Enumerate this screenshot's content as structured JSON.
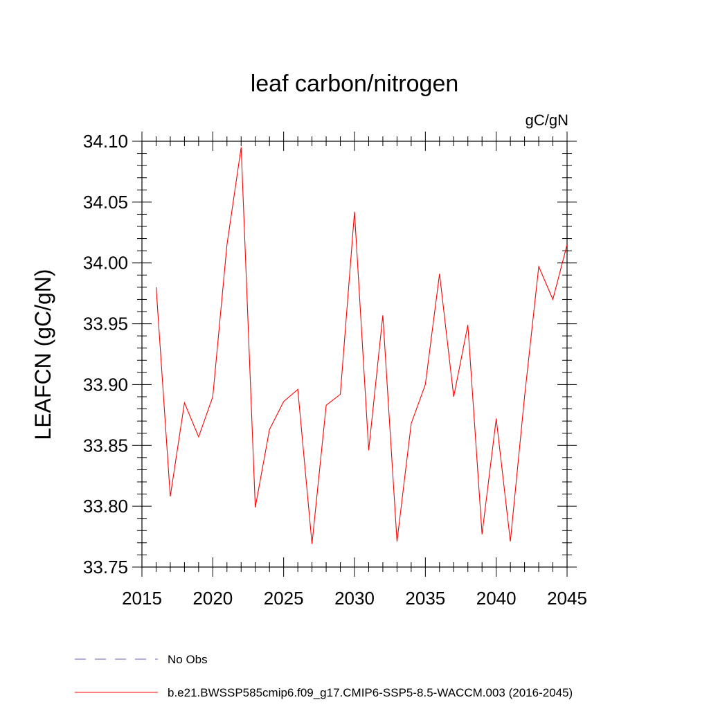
{
  "chart_data": {
    "type": "line",
    "title": "leaf carbon/nitrogen",
    "units_label": "gC/gN",
    "ylabel": "LEAFCN  (gC/gN)",
    "xlabel": "",
    "xlim": [
      2015,
      2045
    ],
    "ylim": [
      33.75,
      34.1
    ],
    "x_ticks": [
      2015,
      2020,
      2025,
      2030,
      2035,
      2040,
      2045
    ],
    "x_tick_labels": [
      "2015",
      "2020",
      "2025",
      "2030",
      "2035",
      "2040",
      "2045"
    ],
    "y_ticks": [
      33.75,
      33.8,
      33.85,
      33.9,
      33.95,
      34.0,
      34.05,
      34.1
    ],
    "y_tick_labels": [
      "33.75",
      "33.80",
      "33.85",
      "33.90",
      "33.95",
      "34.00",
      "34.05",
      "34.10"
    ],
    "grid": false,
    "legend_position": "bottom",
    "series": [
      {
        "name": "b.e21.BWSSP585cmip6.f09_g17.CMIP6-SSP5-8.5-WACCM.003 (2016-2045)",
        "color": "#ff0000",
        "dash": "solid",
        "x": [
          2016,
          2017,
          2018,
          2019,
          2020,
          2021,
          2022,
          2023,
          2024,
          2025,
          2026,
          2027,
          2028,
          2029,
          2030,
          2031,
          2032,
          2033,
          2034,
          2035,
          2036,
          2037,
          2038,
          2039,
          2040,
          2041,
          2042,
          2043,
          2044,
          2045
        ],
        "values": [
          33.98,
          33.808,
          33.885,
          33.857,
          33.89,
          34.015,
          34.095,
          33.799,
          33.863,
          33.886,
          33.896,
          33.769,
          33.883,
          33.892,
          34.042,
          33.846,
          33.957,
          33.771,
          33.868,
          33.9,
          33.991,
          33.89,
          33.949,
          33.777,
          33.872,
          33.771,
          33.89,
          33.997,
          33.97,
          34.015
        ]
      }
    ],
    "legend": [
      {
        "label": "No Obs",
        "color": "#6a5acd",
        "dash": "dashed"
      },
      {
        "label": "b.e21.BWSSP585cmip6.f09_g17.CMIP6-SSP5-8.5-WACCM.003 (2016-2045)",
        "color": "#ff0000",
        "dash": "solid"
      }
    ]
  }
}
